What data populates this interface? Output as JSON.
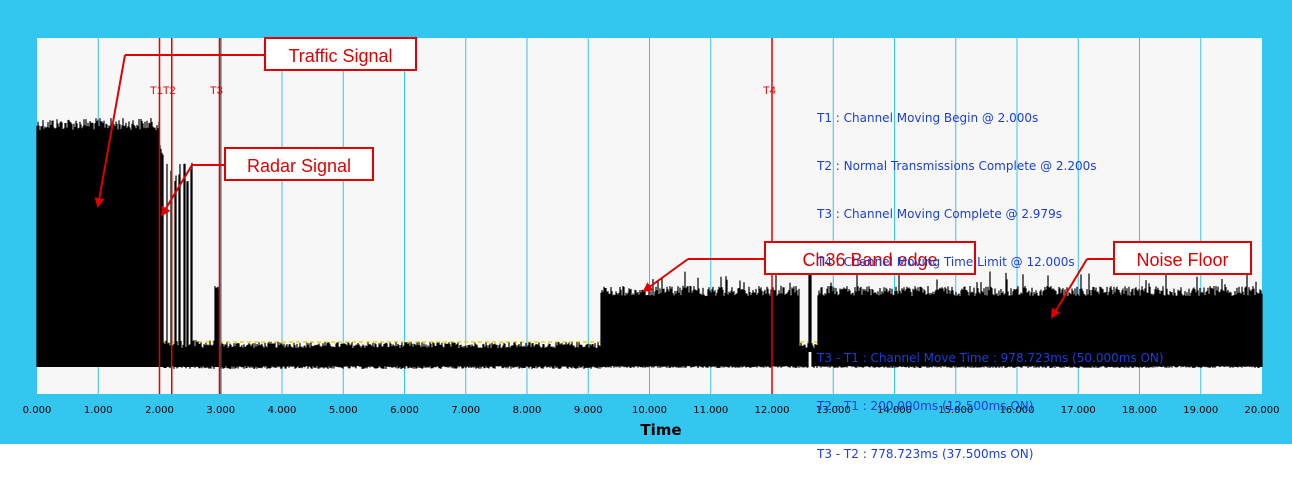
{
  "chart_data": {
    "type": "line",
    "xlabel": "Time",
    "xlim": [
      0,
      20
    ],
    "xticks": [
      "0.000",
      "1.000",
      "2.000",
      "3.000",
      "4.000",
      "5.000",
      "6.000",
      "7.000",
      "8.000",
      "9.000",
      "10.000",
      "11.000",
      "12.000",
      "13.000",
      "14.000",
      "15.000",
      "16.000",
      "17.000",
      "18.000",
      "19.000",
      "20.000"
    ],
    "grid": true,
    "markers": [
      {
        "label": "T1",
        "x": 2.0,
        "color": "#e00000"
      },
      {
        "label": "T2",
        "x": 2.2,
        "color": "#e00000"
      },
      {
        "label": "T3",
        "x": 2.979,
        "color": "#e00000"
      },
      {
        "label": "T4",
        "x": 12.0,
        "color": "#e00000"
      }
    ],
    "marker_text": {
      "t1t2": "T1T2",
      "t3": "T3",
      "t4": "T4"
    },
    "info_lines": [
      "T1 : Channel Moving Begin @ 2.000s",
      "T2 : Normal Transmissions Complete @ 2.200s",
      "T3 : Channel Moving Complete @ 2.979s",
      "T4 : Channel Moving Time Limit @ 12.000s",
      "",
      "T3 - T1 : Channel Move Time : 978.723ms (50.000ms ON)",
      "T2 - T1 : 200.000ms (12.500ms ON)",
      "T3 - T2 : 778.723ms (37.500ms ON)"
    ],
    "annotations": {
      "traffic": "Traffic Signal",
      "radar": "Radar Signal",
      "band_edge": "Ch36 Band edge",
      "noise": "Noise Floor"
    },
    "signal_segments": [
      {
        "x": [
          0.0,
          2.0
        ],
        "level": "high"
      },
      {
        "x": [
          2.0,
          2.979
        ],
        "level": "radar bursts"
      },
      {
        "x": [
          2.979,
          9.2
        ],
        "level": "noise floor"
      },
      {
        "x": [
          9.2,
          12.45
        ],
        "level": "band edge"
      },
      {
        "x": [
          12.45,
          12.75
        ],
        "level": "noise floor"
      },
      {
        "x": [
          12.75,
          20.0
        ],
        "level": "band edge"
      }
    ],
    "colors": {
      "frame": "#33c6ef",
      "plot_bg": "#f7f7f7",
      "grid": "#33c6ef",
      "marker": "#e00000",
      "signal": "#000000",
      "threshold": "#f2d000",
      "info_text": "#1a3fd9"
    }
  }
}
